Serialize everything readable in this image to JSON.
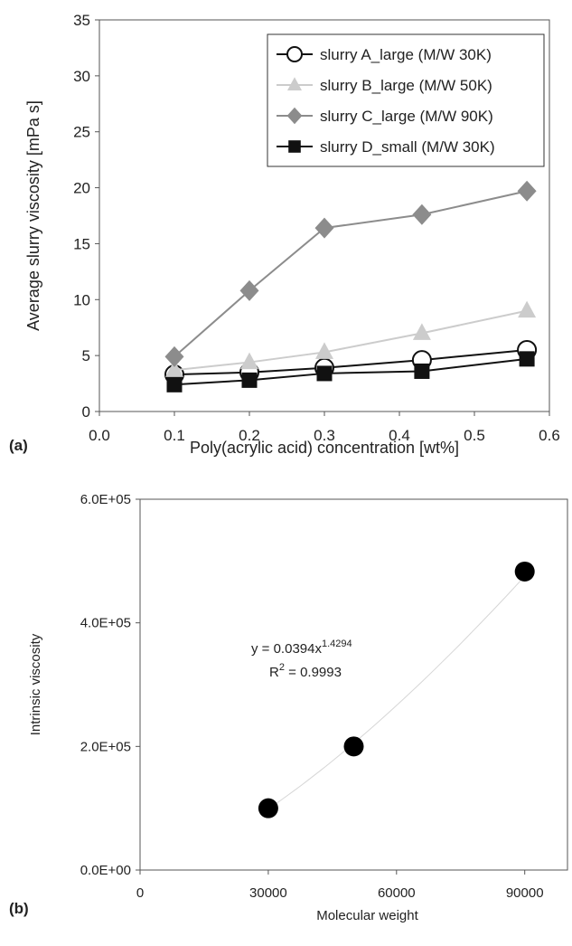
{
  "chart_data": [
    {
      "panel_label": "(a)",
      "type": "line",
      "xlabel": "Poly(acrylic acid) concentration [wt%]",
      "ylabel": "Average slurry viscosity [mPa s]",
      "xlim": [
        0.0,
        0.6
      ],
      "ylim": [
        0,
        35
      ],
      "xticks": [
        "0.0",
        "0.1",
        "0.2",
        "0.3",
        "0.4",
        "0.5",
        "0.6"
      ],
      "yticks": [
        "0",
        "5",
        "10",
        "15",
        "20",
        "25",
        "30",
        "35"
      ],
      "grid": false,
      "legend_position": "top-right",
      "series": [
        {
          "name": "slurry A_large (M/W 30K)",
          "marker": "circle-open",
          "color": "#111111",
          "x": [
            0.1,
            0.2,
            0.3,
            0.43,
            0.57
          ],
          "y": [
            3.3,
            3.5,
            3.9,
            4.6,
            5.5
          ]
        },
        {
          "name": "slurry B_large (M/W 50K)",
          "marker": "triangle",
          "color": "#cccccc",
          "x": [
            0.1,
            0.2,
            0.3,
            0.43,
            0.57
          ],
          "y": [
            3.7,
            4.4,
            5.3,
            7.0,
            9.0
          ]
        },
        {
          "name": "slurry C_large (M/W 90K)",
          "marker": "diamond",
          "color": "#8c8c8c",
          "x": [
            0.1,
            0.2,
            0.3,
            0.43,
            0.57
          ],
          "y": [
            4.9,
            10.8,
            16.4,
            17.6,
            19.7
          ]
        },
        {
          "name": "slurry D_small (M/W 30K)",
          "marker": "square",
          "color": "#111111",
          "x": [
            0.1,
            0.2,
            0.3,
            0.43,
            0.57
          ],
          "y": [
            2.4,
            2.8,
            3.4,
            3.6,
            4.7
          ]
        }
      ]
    },
    {
      "panel_label": "(b)",
      "type": "scatter",
      "xlabel": "Molecular weight",
      "ylabel": "Intrinsic viscosity",
      "xlim": [
        0,
        100000
      ],
      "ylim": [
        0,
        600000
      ],
      "xticks": [
        "0",
        "30000",
        "60000",
        "90000"
      ],
      "yticks": [
        "0.0E+00",
        "2.0E+05",
        "4.0E+05",
        "6.0E+05"
      ],
      "grid": false,
      "series": [
        {
          "marker": "circle-filled",
          "color": "#000000",
          "x": [
            30000,
            50000,
            90000
          ],
          "y": [
            100000,
            200000,
            483000
          ]
        }
      ],
      "trendline": {
        "equation_base": "y = 0.0394x",
        "equation_exponent": "1.4294",
        "r2_base": "R",
        "r2_exponent": "2",
        "r2_value": " = 0.9993",
        "coefficient": 0.0394,
        "exponent": 1.4294
      }
    }
  ]
}
